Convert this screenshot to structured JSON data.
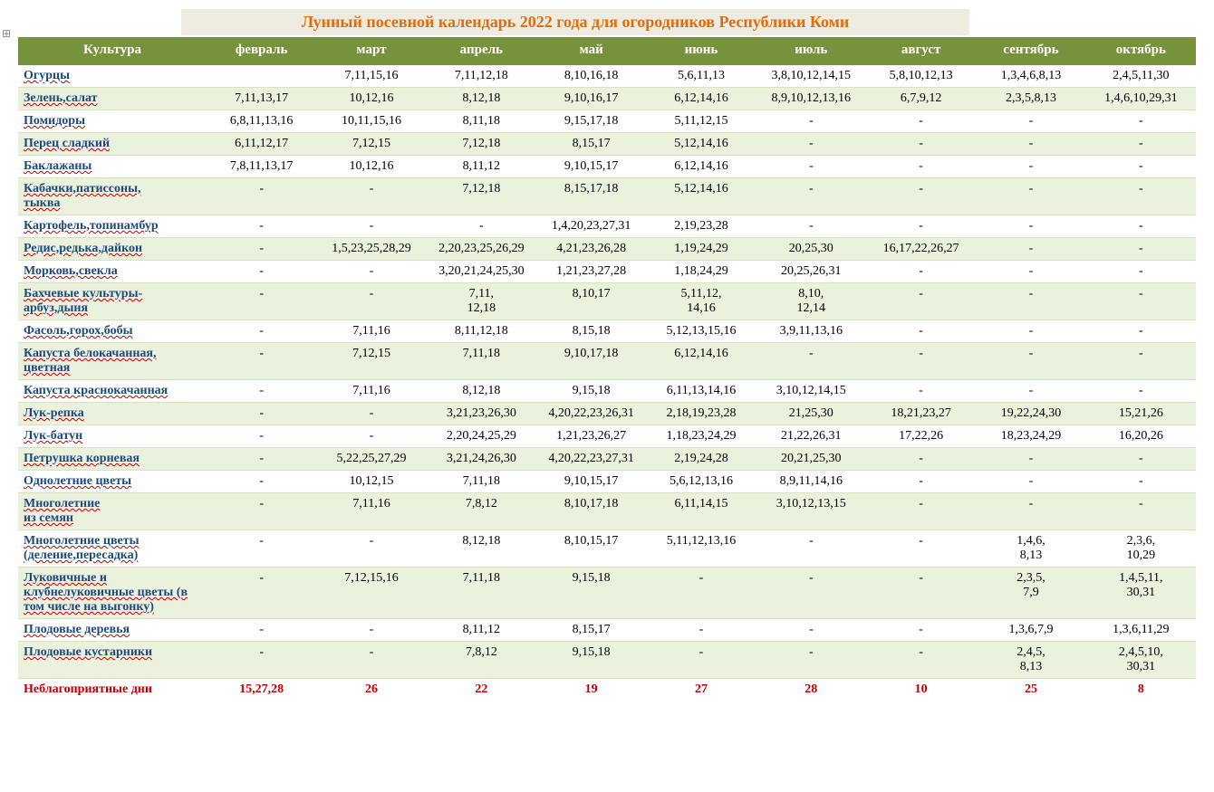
{
  "title": "Лунный посевной календарь 2022 года для огородников Республики Коми",
  "anchor_glyph": "⊞",
  "columns": [
    "Культура",
    "февраль",
    "март",
    "апрель",
    "май",
    "июнь",
    "июль",
    "август",
    "сентябрь",
    "октябрь"
  ],
  "rows": [
    {
      "culture": "Огурцы",
      "vals": [
        "",
        "7,11,15,16",
        "7,11,12,18",
        "8,10,16,18",
        "5,6,11,13",
        "3,8,10,12,14,15",
        "5,8,10,12,13",
        "1,3,4,6,8,13",
        "2,4,5,11,30"
      ]
    },
    {
      "culture": "Зелень,салат",
      "vals": [
        "7,11,13,17",
        "10,12,16",
        "8,12,18",
        "9,10,16,17",
        "6,12,14,16",
        "8,9,10,12,13,16",
        "6,7,9,12",
        "2,3,5,8,13",
        "1,4,6,10,29,31"
      ]
    },
    {
      "culture": "Помидоры",
      "vals": [
        "6,8,11,13,16",
        "10,11,15,16",
        "8,11,18",
        "9,15,17,18",
        "5,11,12,15",
        "-",
        "-",
        "-",
        "-"
      ]
    },
    {
      "culture": "Перец сладкий",
      "vals": [
        "6,11,12,17",
        "7,12,15",
        "7,12,18",
        "8,15,17",
        "5,12,14,16",
        "-",
        "-",
        "-",
        "-"
      ]
    },
    {
      "culture": "Баклажаны",
      "vals": [
        "7,8,11,13,17",
        "10,12,16",
        "8,11,12",
        "9,10,15,17",
        "6,12,14,16",
        "-",
        "-",
        "-",
        "-"
      ]
    },
    {
      "culture": "Кабачки,патиссоны,\nтыква",
      "vals": [
        "-",
        "-",
        "7,12,18",
        "8,15,17,18",
        "5,12,14,16",
        "-",
        "-",
        "-",
        "-"
      ]
    },
    {
      "culture": "Картофель,топинамбур",
      "vals": [
        "-",
        "-",
        "-",
        "1,4,20,23,27,31",
        "2,19,23,28",
        "-",
        "-",
        "-",
        "-"
      ]
    },
    {
      "culture": "Редис,редька,дайкон",
      "vals": [
        "-",
        "1,5,23,25,28,29",
        "2,20,23,25,26,29",
        "4,21,23,26,28",
        "1,19,24,29",
        "20,25,30",
        "16,17,22,26,27",
        "-",
        "-"
      ]
    },
    {
      "culture": "Морковь,свекла",
      "vals": [
        "-",
        "-",
        "3,20,21,24,25,30",
        "1,21,23,27,28",
        "1,18,24,29",
        "20,25,26,31",
        "-",
        "-",
        "-"
      ]
    },
    {
      "culture": "Бахчевые культуры-\nарбуз,дыня",
      "vals": [
        "-",
        "-",
        "7,11,\n12,18",
        "8,10,17",
        "5,11,12,\n14,16",
        "8,10,\n12,14",
        "-",
        "-",
        "-"
      ]
    },
    {
      "culture": "Фасоль,горох,бобы",
      "vals": [
        "-",
        "7,11,16",
        "8,11,12,18",
        "8,15,18",
        "5,12,13,15,16",
        "3,9,11,13,16",
        "-",
        "-",
        "-"
      ]
    },
    {
      "culture": "Капуста белокачанная,\nцветная",
      "vals": [
        "-",
        "7,12,15",
        "7,11,18",
        "9,10,17,18",
        "6,12,14,16",
        "-",
        "-",
        "-",
        "-"
      ]
    },
    {
      "culture": "Капуста краснокачанная",
      "vals": [
        "-",
        "7,11,16",
        "8,12,18",
        "9,15,18",
        "6,11,13,14,16",
        "3,10,12,14,15",
        "-",
        "-",
        "-"
      ]
    },
    {
      "culture": "Лук-репка",
      "vals": [
        "-",
        "-",
        "3,21,23,26,30",
        "4,20,22,23,26,31",
        "2,18,19,23,28",
        "21,25,30",
        "18,21,23,27",
        "19,22,24,30",
        "15,21,26"
      ]
    },
    {
      "culture": "Лук-батун",
      "vals": [
        "-",
        "-",
        "2,20,24,25,29",
        "1,21,23,26,27",
        "1,18,23,24,29",
        "21,22,26,31",
        "17,22,26",
        "18,23,24,29",
        "16,20,26"
      ]
    },
    {
      "culture": "Петрушка корневая",
      "vals": [
        "-",
        "5,22,25,27,29",
        "3,21,24,26,30",
        "4,20,22,23,27,31",
        "2,19,24,28",
        "20,21,25,30",
        "-",
        "-",
        "-"
      ]
    },
    {
      "culture": "Однолетние цветы",
      "vals": [
        "-",
        "10,12,15",
        "7,11,18",
        "9,10,15,17",
        "5,6,12,13,16",
        "8,9,11,14,16",
        "-",
        "-",
        "-"
      ]
    },
    {
      "culture": "Многолетние\n из семян",
      "vals": [
        "-",
        "7,11,16",
        "7,8,12",
        "8,10,17,18",
        "6,11,14,15",
        "3,10,12,13,15",
        "-",
        "-",
        "-"
      ]
    },
    {
      "culture": "Многолетние цветы (деление,пересадка)",
      "vals": [
        "-",
        "-",
        "8,12,18",
        "8,10,15,17",
        "5,11,12,13,16",
        "-",
        "-",
        "1,4,6,\n8,13",
        "2,3,6,\n10,29"
      ]
    },
    {
      "culture": "Луковичные и клубнелуковичные цветы (в том числе на выгонку)",
      "vals": [
        "-",
        "7,12,15,16",
        "7,11,18",
        "9,15,18",
        "-",
        "-",
        "-",
        "2,3,5,\n7,9",
        "1,4,5,11,\n30,31"
      ]
    },
    {
      "culture": "Плодовые деревья",
      "vals": [
        "-",
        "-",
        "8,11,12",
        "8,15,17",
        "-",
        "-",
        "-",
        "1,3,6,7,9",
        "1,3,6,11,29"
      ]
    },
    {
      "culture": "Плодовые кустарники",
      "vals": [
        "-",
        "-",
        "7,8,12",
        "9,15,18",
        "-",
        "-",
        "-",
        "2,4,5,\n8,13",
        "2,4,5,10,\n30,31"
      ]
    }
  ],
  "bad_days": {
    "culture": "Неблагоприятные дни",
    "vals": [
      "15,27,28",
      "26",
      "22",
      "19",
      "27",
      "28",
      "10",
      "25",
      "8"
    ]
  },
  "style": {
    "title_bg": "#eeece1",
    "title_color": "#e36c0a",
    "header_bg": "#76923c",
    "header_fg": "#ffffff",
    "row_alt_bg": "#eaf1dd",
    "culture_fg": "#1f497d",
    "bad_fg": "#c00000",
    "font": "Times New Roman",
    "base_fontsize": 14,
    "title_fontsize": 18
  }
}
